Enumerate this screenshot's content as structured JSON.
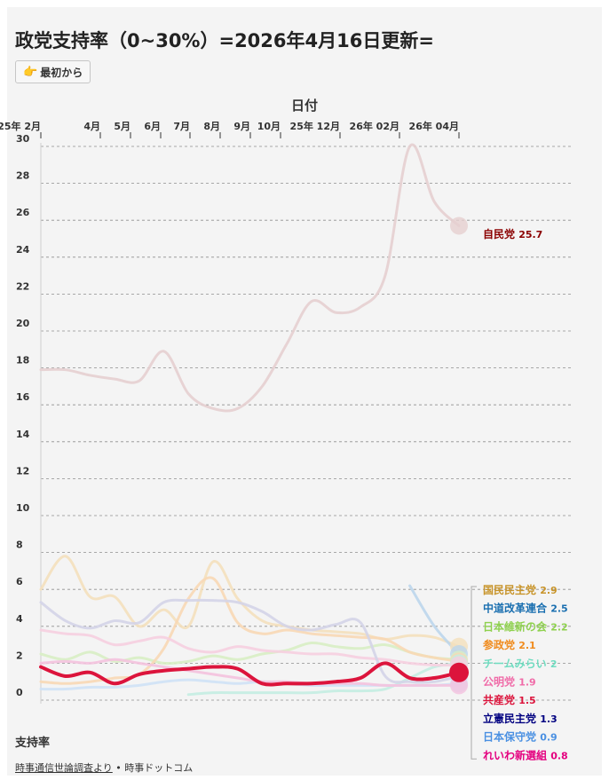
{
  "title": "政党支持率（0~30%）=2026年4月16日更新=",
  "reset_button": {
    "label": "最初から",
    "icon": "pointing-hand-icon"
  },
  "footer": {
    "source_link": "時事通信世論調査より",
    "separator": "•",
    "publisher": "時事ドットコム"
  },
  "chart_data": {
    "type": "line",
    "xlabel": "日付",
    "ylabel": "支持率",
    "ylim": [
      0,
      30
    ],
    "grid": true,
    "legend": "right",
    "x_tick_labels": [
      "25年 2月",
      "4月",
      "5月",
      "6月",
      "7月",
      "8月",
      "9月",
      "10月",
      "25年 12月",
      "26年 02月",
      "26年 04月"
    ],
    "y_ticks": [
      0,
      2,
      4,
      6,
      8,
      10,
      12,
      14,
      16,
      18,
      20,
      22,
      24,
      26,
      28,
      30
    ],
    "highlighted_series": "共産党",
    "series": [
      {
        "name": "自民党",
        "value_label": "25.7",
        "color": "#8b0000",
        "line_color": "#e6cfd0",
        "values": [
          17.9,
          17.9,
          17.6,
          17.4,
          17.3,
          18.9,
          16.6,
          15.8,
          15.8,
          17.0,
          19.3,
          21.6,
          21.0,
          21.3,
          23.0,
          30.0,
          27.0,
          25.7
        ]
      },
      {
        "name": "国民民主党",
        "value_label": "2.9",
        "color": "#c8942a",
        "line_color": "#f4e0bc",
        "values": [
          6.0,
          7.8,
          5.6,
          5.6,
          4.0,
          4.9,
          4.0,
          7.5,
          5.5,
          4.3,
          4.0,
          3.8,
          3.7,
          3.6,
          3.3,
          3.5,
          3.4,
          2.9
        ]
      },
      {
        "name": "中道改革連合",
        "value_label": "2.5",
        "color": "#1a6fb0",
        "line_color": "#bcd6ec",
        "values": [
          null,
          null,
          null,
          null,
          null,
          null,
          null,
          null,
          null,
          null,
          null,
          null,
          null,
          null,
          null,
          6.2,
          4.0,
          2.5
        ]
      },
      {
        "name": "日本維新の会",
        "value_label": "2.2",
        "color": "#8fd14f",
        "line_color": "#d8eec4",
        "values": [
          2.5,
          2.2,
          2.6,
          2.1,
          2.3,
          2.0,
          2.1,
          2.4,
          2.2,
          2.5,
          2.7,
          3.1,
          2.9,
          2.8,
          3.0,
          2.6,
          2.3,
          2.2
        ]
      },
      {
        "name": "参政党",
        "value_label": "2.1",
        "color": "#f08b1d",
        "line_color": "#f8d8b5",
        "values": [
          1.0,
          0.9,
          1.0,
          1.2,
          1.4,
          2.8,
          5.5,
          6.6,
          4.2,
          3.6,
          3.8,
          3.6,
          3.5,
          3.4,
          3.3,
          2.6,
          2.3,
          2.1
        ]
      },
      {
        "name": "チームみらい",
        "value_label": "2",
        "color": "#6fdcc0",
        "line_color": "#c4ede2",
        "values": [
          null,
          null,
          null,
          null,
          null,
          null,
          0.3,
          0.4,
          0.4,
          0.4,
          0.4,
          0.4,
          0.5,
          0.5,
          0.6,
          1.2,
          1.8,
          2.0
        ]
      },
      {
        "name": "公明党",
        "value_label": "1.9",
        "color": "#f06ba8",
        "line_color": "#f6cfe0",
        "values": [
          3.8,
          3.6,
          3.5,
          3.0,
          3.2,
          3.4,
          2.8,
          2.6,
          2.9,
          2.7,
          2.6,
          2.5,
          2.5,
          2.3,
          2.2,
          2.0,
          1.9,
          1.9
        ]
      },
      {
        "name": "共産党",
        "value_label": "1.5",
        "color": "#dc143c",
        "line_color": "#dc143c",
        "values": [
          1.8,
          1.3,
          1.5,
          0.9,
          1.4,
          1.6,
          1.7,
          1.8,
          1.7,
          0.9,
          0.9,
          0.9,
          1.0,
          1.2,
          2.0,
          1.2,
          1.2,
          1.5
        ]
      },
      {
        "name": "立憲民主党",
        "value_label": "1.3",
        "color": "#000080",
        "line_color": "#d4d4e8",
        "values": [
          5.3,
          4.3,
          3.9,
          4.3,
          4.2,
          5.3,
          5.4,
          5.4,
          5.3,
          4.8,
          4.0,
          3.8,
          4.1,
          4.2,
          1.3,
          1.0,
          1.0,
          1.3
        ]
      },
      {
        "name": "日本保守党",
        "value_label": "0.9",
        "color": "#4a90e2",
        "line_color": "#cfe2f6",
        "values": [
          0.6,
          0.6,
          0.7,
          0.7,
          0.8,
          1.0,
          1.1,
          1.0,
          0.9,
          1.0,
          0.9,
          0.8,
          0.8,
          0.8,
          0.8,
          0.8,
          0.8,
          0.9
        ]
      },
      {
        "name": "れいわ新選組",
        "value_label": "0.8",
        "color": "#e4007f",
        "line_color": "#f4c2de",
        "values": [
          2.0,
          2.1,
          2.0,
          2.2,
          2.0,
          1.8,
          1.6,
          1.4,
          1.2,
          1.0,
          1.0,
          0.9,
          0.9,
          0.9,
          0.8,
          0.8,
          0.8,
          0.8
        ]
      }
    ]
  }
}
